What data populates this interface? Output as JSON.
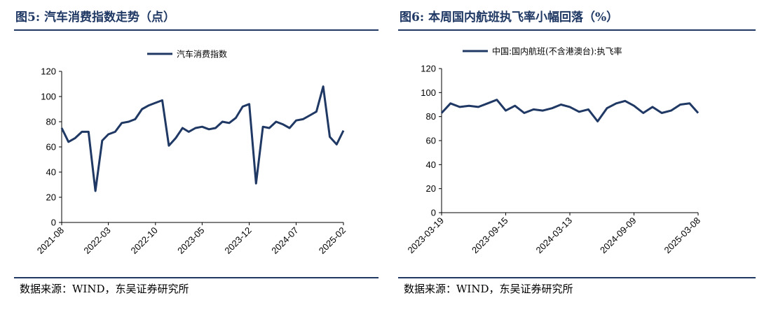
{
  "left": {
    "title": "图5:  汽车消费指数走势（点）",
    "source": "数据来源：WIND，东吴证券研究所"
  },
  "right": {
    "title": "图6:  本周国内航班执飞率小幅回落（%）",
    "source": "数据来源：WIND，东吴证券研究所"
  },
  "colors": {
    "series": "#1f3864",
    "rule": "#1f3864"
  },
  "chart_data": [
    {
      "type": "line",
      "title": "汽车消费指数走势（点）",
      "ylim": [
        0,
        120
      ],
      "yticks": [
        "0",
        "20",
        "40",
        "60",
        "80",
        "100",
        "120"
      ],
      "xtick_labels": [
        "2021-08",
        "2022-03",
        "2022-10",
        "2023-05",
        "2023-12",
        "2024-07",
        "2025-02"
      ],
      "legend_position": "top-center",
      "series": [
        {
          "name": "汽车消费指数",
          "x": [
            "2021-08",
            "2021-09",
            "2021-10",
            "2021-11",
            "2021-12",
            "2022-01",
            "2022-02",
            "2022-03",
            "2022-04",
            "2022-05",
            "2022-06",
            "2022-07",
            "2022-08",
            "2022-09",
            "2022-10",
            "2022-11",
            "2022-12",
            "2023-01",
            "2023-02",
            "2023-03",
            "2023-04",
            "2023-05",
            "2023-06",
            "2023-07",
            "2023-08",
            "2023-09",
            "2023-10",
            "2023-11",
            "2023-12",
            "2024-01",
            "2024-02",
            "2024-03",
            "2024-04",
            "2024-05",
            "2024-06",
            "2024-07",
            "2024-08",
            "2024-09",
            "2024-10",
            "2024-11",
            "2024-12",
            "2025-01",
            "2025-02"
          ],
          "values": [
            75,
            64,
            67,
            72,
            72,
            25,
            65,
            70,
            72,
            79,
            80,
            82,
            90,
            93,
            95,
            97,
            61,
            67,
            75,
            72,
            75,
            76,
            74,
            75,
            80,
            79,
            83,
            92,
            94,
            31,
            76,
            75,
            80,
            78,
            75,
            81,
            82,
            85,
            88,
            108,
            68,
            62,
            73
          ]
        }
      ]
    },
    {
      "type": "line",
      "title": "本周国内航班执飞率小幅回落（%）",
      "ylim": [
        0,
        120
      ],
      "yticks": [
        "0",
        "20",
        "40",
        "60",
        "80",
        "100",
        "120"
      ],
      "xtick_labels": [
        "2023-03-19",
        "2023-09-15",
        "2024-03-13",
        "2024-09-09",
        "2025-03-08"
      ],
      "legend_position": "top-center",
      "series": [
        {
          "name": "中国:国内航班(不含港澳台):执飞率",
          "x": [
            "2023-03-19",
            "2023-04-13",
            "2023-05-09",
            "2023-06-04",
            "2023-06-30",
            "2023-07-26",
            "2023-08-21",
            "2023-09-15",
            "2023-10-11",
            "2023-11-06",
            "2023-12-02",
            "2023-12-28",
            "2024-01-23",
            "2024-02-17",
            "2024-03-13",
            "2024-04-08",
            "2024-05-04",
            "2024-05-30",
            "2024-06-25",
            "2024-07-21",
            "2024-08-15",
            "2024-09-09",
            "2024-10-05",
            "2024-10-31",
            "2024-11-26",
            "2024-12-22",
            "2025-01-17",
            "2025-02-12",
            "2025-03-08"
          ],
          "values": [
            83,
            91,
            88,
            89,
            88,
            91,
            94,
            85,
            89,
            83,
            86,
            85,
            87,
            90,
            88,
            84,
            86,
            76,
            87,
            91,
            93,
            89,
            83,
            88,
            83,
            85,
            90,
            91,
            83
          ]
        }
      ]
    }
  ]
}
